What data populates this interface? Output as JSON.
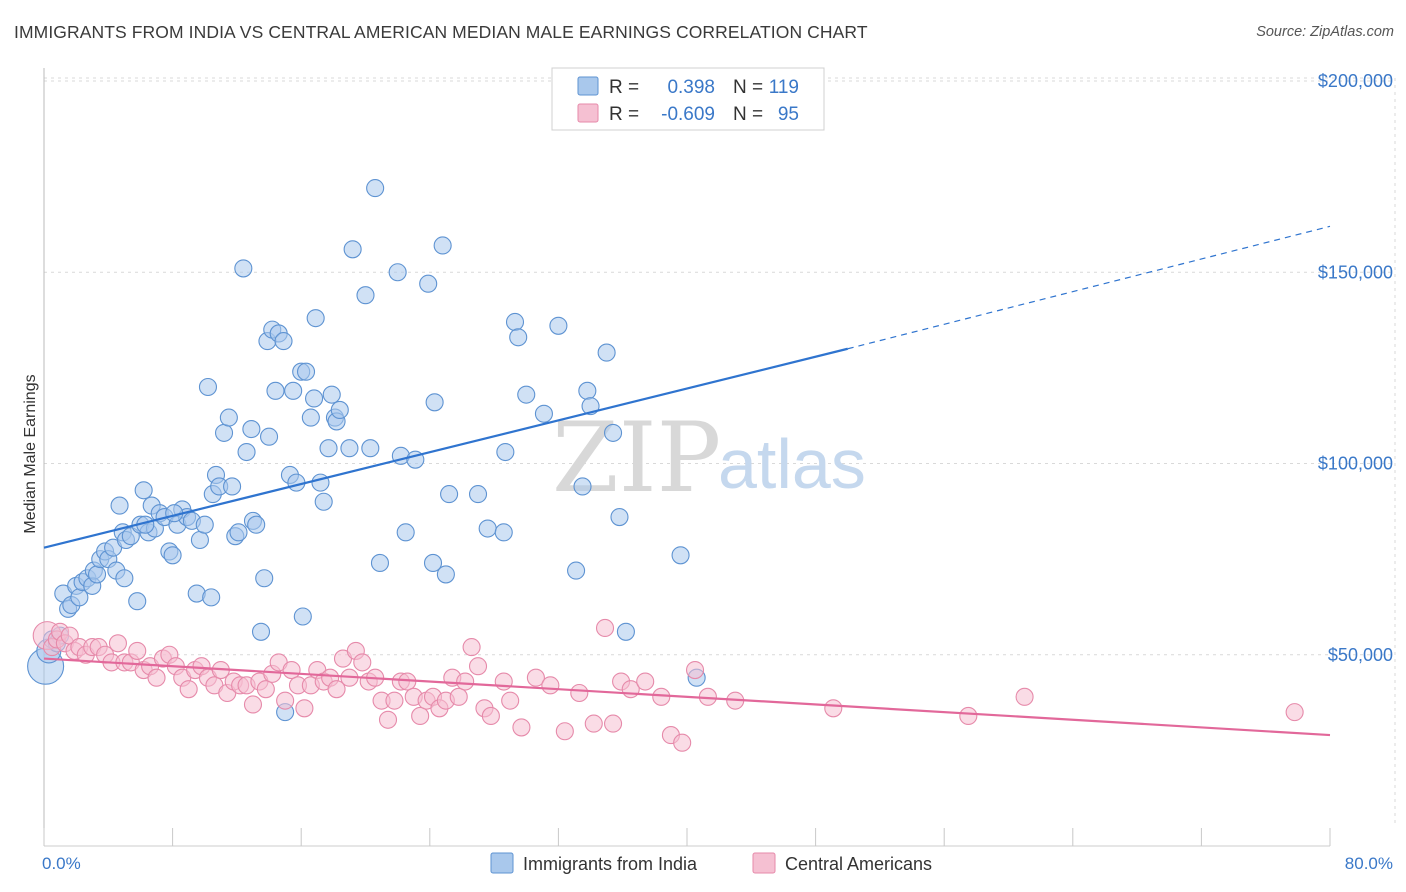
{
  "title": "IMMIGRANTS FROM INDIA VS CENTRAL AMERICAN MEDIAN MALE EARNINGS CORRELATION CHART",
  "source": "Source: ZipAtlas.com",
  "watermark": {
    "zip": "ZIP",
    "atlas": "atlas"
  },
  "colors": {
    "india_fill": "#a9c8ec",
    "india_stroke": "#5e93d2",
    "india_line": "#2f74cf",
    "central_fill": "#f5c0d2",
    "central_stroke": "#e68aaa",
    "central_line": "#e2689a",
    "axis_label": "#3a78c8",
    "grid": "#d9d9d9"
  },
  "legend": {
    "rows": [
      {
        "r_label": "R =",
        "r_value": "0.398",
        "n_label": "N =",
        "n_value": "119"
      },
      {
        "r_label": "R =",
        "r_value": "-0.609",
        "n_label": "N =",
        "n_value": "95"
      }
    ]
  },
  "chart_data": {
    "type": "scatter",
    "title": "IMMIGRANTS FROM INDIA VS CENTRAL AMERICAN MEDIAN MALE EARNINGS CORRELATION CHART",
    "xlabel": "",
    "ylabel": "Median Male Earnings",
    "xlim": [
      0,
      80
    ],
    "ylim": [
      0,
      210000
    ],
    "x_tick_labels": [
      "0.0%",
      "80.0%"
    ],
    "y_ticks": [
      50000,
      100000,
      150000,
      200000
    ],
    "y_tick_labels": [
      "$50,000",
      "$100,000",
      "$150,000",
      "$200,000"
    ],
    "grid": true,
    "legend_position": "top-center",
    "series": [
      {
        "name": "Immigrants from India",
        "r": 0.398,
        "n": 119,
        "trend": {
          "x": [
            0,
            50
          ],
          "y": [
            78000,
            130000
          ],
          "dashed_to": [
            80,
            162000
          ]
        },
        "points": [
          [
            0.1,
            47000
          ],
          [
            0.3,
            51000
          ],
          [
            0.5,
            54000
          ],
          [
            0.8,
            53000
          ],
          [
            1.0,
            55000
          ],
          [
            1.2,
            66000
          ],
          [
            1.5,
            62000
          ],
          [
            1.7,
            63000
          ],
          [
            2.0,
            68000
          ],
          [
            2.2,
            65000
          ],
          [
            2.4,
            69000
          ],
          [
            2.7,
            70000
          ],
          [
            3.0,
            68000
          ],
          [
            3.1,
            72000
          ],
          [
            3.3,
            71000
          ],
          [
            3.5,
            75000
          ],
          [
            3.8,
            77000
          ],
          [
            4.0,
            75000
          ],
          [
            4.3,
            78000
          ],
          [
            4.5,
            72000
          ],
          [
            4.7,
            89000
          ],
          [
            4.9,
            82000
          ],
          [
            5.1,
            80000
          ],
          [
            5.4,
            81000
          ],
          [
            5.8,
            64000
          ],
          [
            6.0,
            84000
          ],
          [
            6.2,
            93000
          ],
          [
            6.5,
            82000
          ],
          [
            6.7,
            89000
          ],
          [
            6.9,
            83000
          ],
          [
            7.2,
            87000
          ],
          [
            7.5,
            86000
          ],
          [
            7.8,
            77000
          ],
          [
            8.0,
            76000
          ],
          [
            8.3,
            84000
          ],
          [
            8.6,
            88000
          ],
          [
            8.9,
            86000
          ],
          [
            9.2,
            85000
          ],
          [
            9.5,
            66000
          ],
          [
            9.7,
            80000
          ],
          [
            10.0,
            84000
          ],
          [
            10.2,
            120000
          ],
          [
            10.4,
            65000
          ],
          [
            10.5,
            92000
          ],
          [
            10.7,
            97000
          ],
          [
            10.9,
            94000
          ],
          [
            11.2,
            108000
          ],
          [
            11.5,
            112000
          ],
          [
            11.7,
            94000
          ],
          [
            11.9,
            81000
          ],
          [
            12.1,
            82000
          ],
          [
            12.4,
            151000
          ],
          [
            12.6,
            103000
          ],
          [
            12.9,
            109000
          ],
          [
            13.0,
            85000
          ],
          [
            13.2,
            84000
          ],
          [
            13.5,
            56000
          ],
          [
            13.7,
            70000
          ],
          [
            13.9,
            132000
          ],
          [
            14.0,
            107000
          ],
          [
            14.2,
            135000
          ],
          [
            14.4,
            119000
          ],
          [
            14.6,
            134000
          ],
          [
            14.9,
            132000
          ],
          [
            15.0,
            35000
          ],
          [
            15.3,
            97000
          ],
          [
            15.5,
            119000
          ],
          [
            15.7,
            95000
          ],
          [
            16.0,
            124000
          ],
          [
            16.1,
            60000
          ],
          [
            16.3,
            124000
          ],
          [
            16.6,
            112000
          ],
          [
            16.8,
            117000
          ],
          [
            16.9,
            138000
          ],
          [
            17.2,
            95000
          ],
          [
            17.4,
            90000
          ],
          [
            17.7,
            104000
          ],
          [
            17.9,
            118000
          ],
          [
            18.1,
            112000
          ],
          [
            18.2,
            111000
          ],
          [
            18.4,
            114000
          ],
          [
            19.0,
            104000
          ],
          [
            19.2,
            156000
          ],
          [
            20.0,
            144000
          ],
          [
            20.3,
            104000
          ],
          [
            20.6,
            172000
          ],
          [
            20.9,
            74000
          ],
          [
            22.0,
            150000
          ],
          [
            22.2,
            102000
          ],
          [
            22.5,
            82000
          ],
          [
            23.1,
            101000
          ],
          [
            23.9,
            147000
          ],
          [
            24.2,
            74000
          ],
          [
            24.3,
            116000
          ],
          [
            24.8,
            157000
          ],
          [
            25.0,
            71000
          ],
          [
            25.2,
            92000
          ],
          [
            27.0,
            92000
          ],
          [
            27.6,
            83000
          ],
          [
            28.6,
            82000
          ],
          [
            28.7,
            103000
          ],
          [
            29.3,
            137000
          ],
          [
            29.5,
            133000
          ],
          [
            30.0,
            118000
          ],
          [
            31.1,
            113000
          ],
          [
            32.0,
            136000
          ],
          [
            33.1,
            72000
          ],
          [
            33.5,
            94000
          ],
          [
            33.8,
            119000
          ],
          [
            34.0,
            115000
          ],
          [
            35.0,
            129000
          ],
          [
            35.4,
            108000
          ],
          [
            35.8,
            86000
          ],
          [
            36.2,
            56000
          ],
          [
            39.6,
            76000
          ],
          [
            40.6,
            44000
          ],
          [
            5.0,
            70000
          ],
          [
            6.3,
            84000
          ],
          [
            8.1,
            87000
          ]
        ]
      },
      {
        "name": "Central Americans",
        "r": -0.609,
        "n": 95,
        "trend": {
          "x": [
            0,
            80
          ],
          "y": [
            49000,
            29000
          ]
        },
        "points": [
          [
            0.2,
            55000
          ],
          [
            0.5,
            52000
          ],
          [
            0.8,
            54000
          ],
          [
            1.0,
            56000
          ],
          [
            1.3,
            53000
          ],
          [
            1.6,
            55000
          ],
          [
            1.9,
            51000
          ],
          [
            2.2,
            52000
          ],
          [
            2.6,
            50000
          ],
          [
            3.0,
            52000
          ],
          [
            3.4,
            52000
          ],
          [
            3.8,
            50000
          ],
          [
            4.2,
            48000
          ],
          [
            4.6,
            53000
          ],
          [
            5.0,
            48000
          ],
          [
            5.4,
            48000
          ],
          [
            5.8,
            51000
          ],
          [
            6.2,
            46000
          ],
          [
            6.6,
            47000
          ],
          [
            7.0,
            44000
          ],
          [
            7.4,
            49000
          ],
          [
            7.8,
            50000
          ],
          [
            8.2,
            47000
          ],
          [
            8.6,
            44000
          ],
          [
            9.0,
            41000
          ],
          [
            9.4,
            46000
          ],
          [
            9.8,
            47000
          ],
          [
            10.2,
            44000
          ],
          [
            10.6,
            42000
          ],
          [
            11.0,
            46000
          ],
          [
            11.4,
            40000
          ],
          [
            11.8,
            43000
          ],
          [
            12.2,
            42000
          ],
          [
            12.6,
            42000
          ],
          [
            13.0,
            37000
          ],
          [
            13.4,
            43000
          ],
          [
            13.8,
            41000
          ],
          [
            14.2,
            45000
          ],
          [
            14.6,
            48000
          ],
          [
            15.0,
            38000
          ],
          [
            15.4,
            46000
          ],
          [
            15.8,
            42000
          ],
          [
            16.2,
            36000
          ],
          [
            16.6,
            42000
          ],
          [
            17.0,
            46000
          ],
          [
            17.4,
            43000
          ],
          [
            17.8,
            44000
          ],
          [
            18.2,
            41000
          ],
          [
            18.6,
            49000
          ],
          [
            19.0,
            44000
          ],
          [
            19.4,
            51000
          ],
          [
            19.8,
            48000
          ],
          [
            20.2,
            43000
          ],
          [
            20.6,
            44000
          ],
          [
            21.0,
            38000
          ],
          [
            21.4,
            33000
          ],
          [
            21.8,
            38000
          ],
          [
            22.2,
            43000
          ],
          [
            22.6,
            43000
          ],
          [
            23.0,
            39000
          ],
          [
            23.4,
            34000
          ],
          [
            23.8,
            38000
          ],
          [
            24.2,
            39000
          ],
          [
            24.6,
            36000
          ],
          [
            25.0,
            38000
          ],
          [
            25.4,
            44000
          ],
          [
            25.8,
            39000
          ],
          [
            26.2,
            43000
          ],
          [
            26.6,
            52000
          ],
          [
            27.0,
            47000
          ],
          [
            27.4,
            36000
          ],
          [
            27.8,
            34000
          ],
          [
            28.6,
            43000
          ],
          [
            29.0,
            38000
          ],
          [
            29.7,
            31000
          ],
          [
            30.6,
            44000
          ],
          [
            31.5,
            42000
          ],
          [
            32.4,
            30000
          ],
          [
            33.3,
            40000
          ],
          [
            34.2,
            32000
          ],
          [
            34.9,
            57000
          ],
          [
            35.4,
            32000
          ],
          [
            35.9,
            43000
          ],
          [
            36.5,
            41000
          ],
          [
            37.4,
            43000
          ],
          [
            38.4,
            39000
          ],
          [
            39.0,
            29000
          ],
          [
            39.7,
            27000
          ],
          [
            40.5,
            46000
          ],
          [
            41.3,
            39000
          ],
          [
            43.0,
            38000
          ],
          [
            49.1,
            36000
          ],
          [
            57.5,
            34000
          ],
          [
            61.0,
            39000
          ],
          [
            77.8,
            35000
          ]
        ]
      }
    ]
  },
  "bottom_legend": [
    "Immigrants from India",
    "Central Americans"
  ]
}
